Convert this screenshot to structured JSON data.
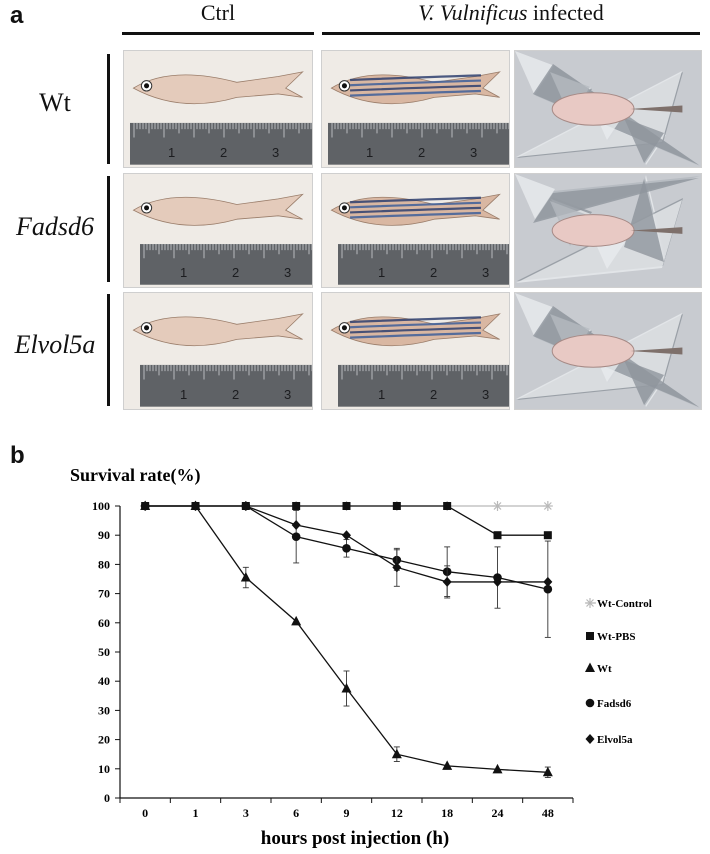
{
  "panel_a": {
    "letter": "a",
    "columns": [
      {
        "label": "Ctrl",
        "italic_part": "",
        "rest": ""
      },
      {
        "label": "",
        "italic_part": "V. Vulnificus",
        "rest": " infected"
      }
    ],
    "rows": [
      {
        "label": "Wt",
        "italic": false
      },
      {
        "label": "Fadsd6",
        "italic": true
      },
      {
        "label": "Elvol5a",
        "italic": true
      }
    ],
    "ruler_numbers": [
      "1",
      "2",
      "3"
    ]
  },
  "panel_b": {
    "letter": "b"
  },
  "chart_data": {
    "type": "line",
    "title": "",
    "ylabel": "Survival rate(%)",
    "xlabel": "hours post injection (h)",
    "categories": [
      "0",
      "1",
      "3",
      "6",
      "9",
      "12",
      "18",
      "24",
      "48"
    ],
    "ylim": [
      0,
      100
    ],
    "yticks": [
      0,
      10,
      20,
      30,
      40,
      50,
      60,
      70,
      80,
      90,
      100
    ],
    "grid": false,
    "legend_position": "right",
    "series": [
      {
        "name": "Wt-Control",
        "marker": "star",
        "color": "#b9b9b9",
        "line_color": "#b9b9b9",
        "values": [
          100,
          100,
          100,
          100,
          100,
          100,
          100,
          100,
          100
        ],
        "errors": [
          0,
          0,
          0,
          0,
          0,
          0,
          0,
          0,
          0
        ]
      },
      {
        "name": "Wt-PBS",
        "marker": "square",
        "color": "#111111",
        "line_color": "#111111",
        "values": [
          100,
          100,
          100,
          100,
          100,
          100,
          100,
          90,
          90
        ],
        "errors": [
          0,
          0,
          0,
          0,
          0,
          0,
          0,
          0,
          0
        ]
      },
      {
        "name": "Wt",
        "marker": "triangle",
        "color": "#111111",
        "line_color": "#111111",
        "values": [
          100,
          100,
          75.5,
          60.5,
          37.5,
          15,
          11,
          9.8,
          8.8
        ],
        "errors": [
          0,
          0,
          3.5,
          0,
          6,
          2.5,
          0,
          0,
          1.8
        ]
      },
      {
        "name": "Fadsd6",
        "marker": "circle",
        "color": "#111111",
        "line_color": "#111111",
        "values": [
          100,
          100,
          100,
          89.5,
          85.5,
          81.5,
          77.5,
          75.5,
          71.5
        ],
        "errors": [
          0,
          0,
          0,
          9,
          3,
          3.5,
          8.5,
          10.5,
          16.5
        ]
      },
      {
        "name": "Elvol5a",
        "marker": "diamond",
        "color": "#111111",
        "line_color": "#111111",
        "values": [
          100,
          100,
          100,
          93.5,
          90,
          79,
          74,
          74,
          74
        ],
        "errors": [
          0,
          0,
          0,
          0,
          0,
          6.5,
          5.5,
          0,
          0
        ]
      }
    ]
  }
}
